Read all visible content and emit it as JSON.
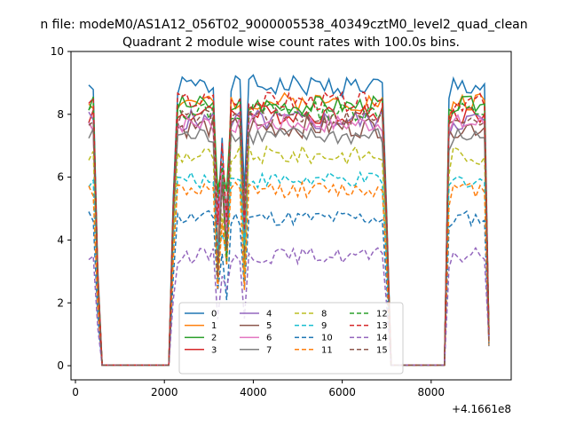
{
  "chart_data": {
    "type": "line",
    "suptitle": "n file: modeM0/AS1A12_056T02_9000005538_40349cztM0_level2_quad_clean",
    "title": "Quadrant 2 module wise count rates with 100.0s bins.",
    "xlabel": "",
    "ylabel": "",
    "x_offset_label": "+4.1661e8",
    "xlim": [
      -100,
      9800
    ],
    "ylim": [
      -0.45,
      10
    ],
    "xticks": [
      0,
      2000,
      4000,
      6000,
      8000
    ],
    "xtick_labels": [
      "0",
      "2000",
      "4000",
      "6000",
      "8000"
    ],
    "yticks": [
      0,
      2,
      4,
      6,
      8,
      10
    ],
    "ytick_labels": [
      "0",
      "2",
      "4",
      "6",
      "8",
      "10"
    ],
    "grid": false,
    "legend": {
      "placement": "lower center",
      "ncol": 4
    },
    "series": [
      {
        "name": "0",
        "color": "#1f77b4",
        "dash": "solid",
        "level": 8.9,
        "noise": 0.35,
        "seed": 1
      },
      {
        "name": "1",
        "color": "#ff7f0e",
        "dash": "solid",
        "level": 8.4,
        "noise": 0.3,
        "seed": 2
      },
      {
        "name": "2",
        "color": "#2ca02c",
        "dash": "solid",
        "level": 8.3,
        "noise": 0.3,
        "seed": 3
      },
      {
        "name": "3",
        "color": "#d62728",
        "dash": "solid",
        "level": 8.0,
        "noise": 0.3,
        "seed": 4
      },
      {
        "name": "4",
        "color": "#9467bd",
        "dash": "solid",
        "level": 7.8,
        "noise": 0.35,
        "seed": 5
      },
      {
        "name": "5",
        "color": "#8c564b",
        "dash": "solid",
        "level": 7.6,
        "noise": 0.35,
        "seed": 6
      },
      {
        "name": "6",
        "color": "#e377c2",
        "dash": "solid",
        "level": 7.7,
        "noise": 0.3,
        "seed": 7
      },
      {
        "name": "7",
        "color": "#7f7f7f",
        "dash": "solid",
        "level": 7.3,
        "noise": 0.3,
        "seed": 8
      },
      {
        "name": "8",
        "color": "#bcbd22",
        "dash": "dashed",
        "level": 6.7,
        "noise": 0.3,
        "seed": 9
      },
      {
        "name": "9",
        "color": "#17becf",
        "dash": "dashed",
        "level": 5.9,
        "noise": 0.25,
        "seed": 10
      },
      {
        "name": "10",
        "color": "#1f77b4",
        "dash": "dashed",
        "level": 4.7,
        "noise": 0.25,
        "seed": 11
      },
      {
        "name": "11",
        "color": "#ff7f0e",
        "dash": "dashed",
        "level": 5.6,
        "noise": 0.25,
        "seed": 12
      },
      {
        "name": "12",
        "color": "#2ca02c",
        "dash": "dashed",
        "level": 8.1,
        "noise": 0.3,
        "seed": 13
      },
      {
        "name": "13",
        "color": "#d62728",
        "dash": "dashed",
        "level": 8.4,
        "noise": 0.3,
        "seed": 14
      },
      {
        "name": "14",
        "color": "#9467bd",
        "dash": "dashed",
        "level": 3.5,
        "noise": 0.25,
        "seed": 15
      },
      {
        "name": "15",
        "color": "#8c564b",
        "dash": "dashed",
        "level": 7.9,
        "noise": 0.3,
        "seed": 16
      }
    ],
    "segments": [
      {
        "x_start": 300,
        "x_end": 500,
        "step": 100
      },
      {
        "x_start": 600,
        "x_end": 2100,
        "step": 100,
        "zero": true
      },
      {
        "x_start": 2200,
        "x_end": 7000,
        "step": 100
      },
      {
        "x_start": 7100,
        "x_end": 8300,
        "step": 100,
        "zero": true
      },
      {
        "x_start": 8400,
        "x_end": 9300,
        "step": 100
      }
    ],
    "dips": [
      {
        "x": 3200,
        "depth": 0.55
      },
      {
        "x": 3300,
        "depth": 0.25
      },
      {
        "x": 3400,
        "depth": 0.5
      },
      {
        "x": 3800,
        "depth": 0.55
      },
      {
        "x": 3850,
        "depth": 0.4
      }
    ]
  }
}
